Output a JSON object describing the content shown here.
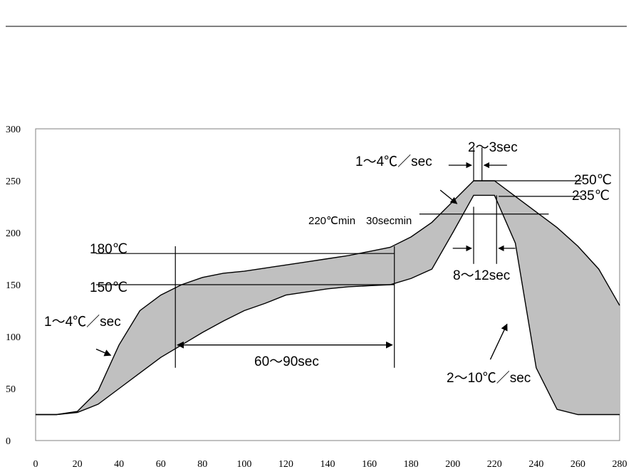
{
  "chart_data": {
    "type": "area",
    "title": "",
    "xlabel": "",
    "ylabel": "",
    "xlim": [
      0,
      280
    ],
    "ylim": [
      0,
      300
    ],
    "x_ticks": [
      0,
      20,
      40,
      60,
      80,
      100,
      120,
      140,
      160,
      180,
      200,
      220,
      240,
      260,
      280
    ],
    "y_ticks": [
      0,
      50,
      100,
      150,
      200,
      250,
      300
    ],
    "grid": false,
    "legend": "none",
    "colors": {
      "band_fill": "#c0c0c0",
      "line": "#000000",
      "background": "#ffffff"
    },
    "series": [
      {
        "role": "upper_limit",
        "x": [
          0,
          10,
          20,
          30,
          40,
          50,
          60,
          70,
          80,
          90,
          100,
          110,
          120,
          130,
          140,
          150,
          160,
          170,
          180,
          190,
          200,
          210,
          220,
          230,
          240,
          250,
          260,
          270,
          280
        ],
        "y": [
          25,
          25,
          28,
          48,
          92,
          125,
          140,
          150,
          157,
          161,
          163,
          166,
          169,
          172,
          175,
          178,
          182,
          186,
          196,
          210,
          230,
          250,
          250,
          235,
          220,
          205,
          187,
          165,
          130
        ]
      },
      {
        "role": "lower_limit",
        "x": [
          0,
          10,
          20,
          30,
          40,
          50,
          60,
          70,
          80,
          90,
          100,
          110,
          120,
          130,
          140,
          150,
          160,
          170,
          180,
          190,
          200,
          210,
          220,
          230,
          240,
          250,
          260,
          270,
          280
        ],
        "y": [
          25,
          25,
          27,
          35,
          50,
          65,
          80,
          92,
          104,
          115,
          125,
          132,
          140,
          143,
          146,
          148,
          149,
          150,
          156,
          165,
          200,
          236,
          236,
          190,
          70,
          30,
          25,
          25,
          25
        ]
      }
    ],
    "reference_lines": [
      {
        "y": 180,
        "x": [
          29,
          172
        ],
        "label": "180℃"
      },
      {
        "y": 150,
        "x": [
          29,
          172
        ],
        "label": "150℃"
      },
      {
        "y": 250,
        "x": [
          210,
          262
        ],
        "label": "250℃"
      },
      {
        "y": 235,
        "x": [
          222,
          262
        ],
        "label": "235℃"
      },
      {
        "y": 218,
        "x": [
          184,
          246
        ]
      }
    ],
    "vertical_lines": [
      {
        "x": 67,
        "y": [
          70,
          187
        ]
      },
      {
        "x": 172,
        "y": [
          70,
          187
        ]
      }
    ],
    "annotations": [
      {
        "text": "1～4℃／sec",
        "x": 2,
        "y": 113,
        "arrow": {
          "from": [
            29,
            88
          ],
          "to": [
            36,
            82
          ]
        }
      },
      {
        "text": "1～4℃／sec",
        "x": 156,
        "y": 261,
        "arrow": {
          "from": [
            194,
            241
          ],
          "to": [
            202,
            228
          ]
        }
      },
      {
        "text": "2～3sec",
        "x": 205,
        "y": 280
      },
      {
        "text": "220℃min　30secmin",
        "x": 127,
        "y": 211
      },
      {
        "text": "8～12sec",
        "x": 199,
        "y": 156
      },
      {
        "text": "60～90sec",
        "x": 105,
        "y": 73,
        "double_arrow": {
          "y": 92,
          "x": [
            68,
            171
          ]
        }
      },
      {
        "text": "2～10℃／sec",
        "x": 198,
        "y": 58,
        "arrow": {
          "from": [
            218,
            78
          ],
          "to": [
            226,
            112
          ]
        }
      }
    ]
  }
}
